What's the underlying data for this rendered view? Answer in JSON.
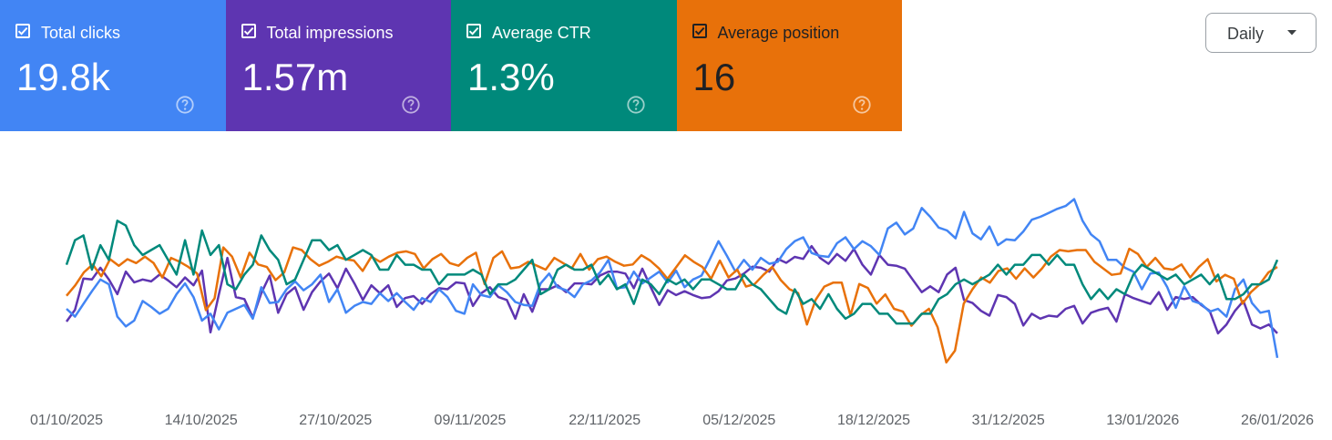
{
  "metrics": [
    {
      "label": "Total clicks",
      "value": "19.8k",
      "color": "#4285f4",
      "checked": true
    },
    {
      "label": "Total impressions",
      "value": "1.57m",
      "color": "#5e35b1",
      "checked": true
    },
    {
      "label": "Average CTR",
      "value": "1.3%",
      "color": "#00897b",
      "checked": true
    },
    {
      "label": "Average position",
      "value": "16",
      "color": "#e8710a",
      "checked": true
    }
  ],
  "range_select": {
    "value": "Daily",
    "icon": "caret-down-icon"
  },
  "help_icon": "help-circle-icon",
  "chart_data": {
    "type": "line",
    "x_start": "01/10/2025",
    "x_end": "26/01/2026",
    "x_ticks": [
      "01/10/2025",
      "14/10/2025",
      "27/10/2025",
      "09/11/2025",
      "22/11/2025",
      "05/12/2025",
      "18/12/2025",
      "31/12/2025",
      "13/01/2026",
      "26/01/2026"
    ],
    "y_axis_visible": false,
    "grid": false,
    "series": [
      {
        "name": "Total impressions",
        "color": "#5e35b1",
        "values": [
          267,
          279,
          311,
          310,
          322,
          310,
          295,
          318,
          307,
          310,
          308,
          315,
          309,
          302,
          312,
          304,
          319,
          256,
          295,
          332,
          292,
          290,
          271,
          296,
          314,
          276,
          295,
          302,
          279,
          297,
          308,
          316,
          301,
          321,
          306,
          289,
          304,
          296,
          304,
          282,
          291,
          293,
          285,
          295,
          301,
          300,
          307,
          306,
          283,
          296,
          302,
          292,
          289,
          270,
          295,
          277,
          300,
          300,
          304,
          297,
          306,
          306,
          305,
          314,
          318,
          318,
          316,
          301,
          321,
          302,
          284,
          299,
          294,
          298,
          294,
          291,
          292,
          298,
          309,
          311,
          316,
          323,
          322,
          318,
          331,
          327,
          333,
          331,
          344,
          332,
          326,
          336,
          329,
          341,
          325,
          315,
          335,
          325,
          324,
          321,
          309,
          297,
          303,
          297,
          315,
          322,
          289,
          286,
          278,
          273,
          294,
          292,
          285,
          263,
          275,
          270,
          273,
          272,
          280,
          283,
          265,
          276,
          279,
          281,
          267,
          295,
          291,
          288,
          285,
          297,
          279,
          292,
          290,
          292,
          284,
          278,
          255,
          264,
          278,
          288,
          264,
          260,
          264,
          255
        ]
      },
      {
        "name": "Total clicks",
        "color": "#4285f4",
        "values": [
          280,
          272,
          285,
          298,
          310,
          305,
          272,
          262,
          268,
          288,
          282,
          275,
          280,
          295,
          306,
          292,
          268,
          275,
          259,
          276,
          280,
          284,
          270,
          302,
          286,
          287,
          300,
          308,
          299,
          305,
          315,
          287,
          300,
          276,
          283,
          287,
          285,
          296,
          288,
          296,
          287,
          279,
          291,
          287,
          300,
          292,
          278,
          275,
          305,
          294,
          292,
          304,
          297,
          287,
          284,
          283,
          306,
          316,
          302,
          299,
          292,
          305,
          309,
          317,
          330,
          301,
          302,
          318,
          306,
          312,
          318,
          307,
          319,
          302,
          310,
          314,
          331,
          349,
          334,
          318,
          330,
          320,
          332,
          326,
          328,
          341,
          349,
          353,
          337,
          334,
          333,
          347,
          353,
          341,
          349,
          344,
          335,
          362,
          368,
          356,
          362,
          383,
          374,
          363,
          360,
          352,
          379,
          357,
          351,
          364,
          345,
          351,
          350,
          359,
          371,
          374,
          378,
          382,
          385,
          392,
          370,
          356,
          349,
          330,
          330,
          322,
          318,
          300,
          316,
          317,
          302,
          281,
          303,
          288,
          285,
          277,
          280,
          272,
          300,
          310,
          286,
          276,
          278,
          230
        ]
      },
      {
        "name": "Average position",
        "color": "#e8710a",
        "values": [
          19.0,
          18.2,
          17.2,
          16.6,
          17.5,
          16.2,
          16.7,
          16.2,
          16.5,
          16.0,
          16.5,
          17.6,
          16.1,
          16.4,
          16.8,
          17.3,
          20.1,
          19.2,
          15.3,
          16.0,
          17.6,
          15.7,
          16.6,
          16.8,
          17.8,
          17.2,
          15.3,
          15.5,
          16.2,
          16.7,
          16.4,
          16.0,
          16.2,
          16.3,
          17.1,
          16.0,
          16.4,
          16.0,
          15.7,
          15.6,
          15.8,
          16.9,
          16.2,
          15.8,
          16.5,
          16.7,
          16.1,
          15.7,
          18.1,
          16.1,
          15.6,
          16.9,
          16.8,
          16.4,
          16.7,
          17.0,
          16.1,
          16.5,
          16.9,
          15.8,
          17.0,
          16.2,
          16.0,
          16.4,
          16.7,
          16.6,
          15.9,
          16.3,
          16.9,
          17.7,
          16.8,
          15.9,
          16.4,
          16.8,
          17.7,
          16.3,
          17.6,
          17.0,
          18.3,
          18.1,
          17.4,
          16.8,
          17.8,
          18.5,
          18.8,
          21.2,
          19.3,
          18.3,
          18.0,
          18.0,
          20.5,
          18.1,
          18.4,
          19.6,
          18.9,
          20.0,
          20.2,
          21.3,
          20.5,
          20.0,
          21.4,
          24.1,
          23.2,
          19.6,
          18.5,
          17.6,
          18.0,
          17.1,
          16.9,
          17.7,
          16.9,
          17.6,
          16.9,
          16.0,
          15.5,
          15.6,
          15.5,
          15.5,
          16.4,
          16.9,
          17.4,
          17.3,
          15.4,
          15.8,
          16.8,
          16.1,
          16.9,
          17.0,
          16.6,
          17.6,
          16.8,
          16.2,
          17.9,
          17.4,
          17.7,
          19.6,
          18.7,
          18.1,
          17.2,
          16.8
        ]
      },
      {
        "name": "Average CTR",
        "color": "#00897b",
        "values": [
          1.3,
          1.35,
          1.36,
          1.29,
          1.34,
          1.31,
          1.39,
          1.38,
          1.34,
          1.32,
          1.33,
          1.34,
          1.31,
          1.28,
          1.35,
          1.28,
          1.37,
          1.32,
          1.34,
          1.26,
          1.25,
          1.28,
          1.3,
          1.36,
          1.33,
          1.31,
          1.26,
          1.27,
          1.31,
          1.35,
          1.35,
          1.33,
          1.34,
          1.31,
          1.32,
          1.33,
          1.32,
          1.29,
          1.29,
          1.32,
          1.3,
          1.3,
          1.29,
          1.29,
          1.26,
          1.28,
          1.28,
          1.28,
          1.29,
          1.28,
          1.24,
          1.26,
          1.26,
          1.27,
          1.29,
          1.31,
          1.24,
          1.25,
          1.29,
          1.3,
          1.29,
          1.29,
          1.3,
          1.26,
          1.28,
          1.25,
          1.26,
          1.22,
          1.27,
          1.26,
          1.24,
          1.27,
          1.26,
          1.27,
          1.25,
          1.27,
          1.27,
          1.26,
          1.25,
          1.25,
          1.28,
          1.26,
          1.25,
          1.23,
          1.21,
          1.2,
          1.25,
          1.22,
          1.23,
          1.21,
          1.24,
          1.21,
          1.19,
          1.2,
          1.22,
          1.22,
          1.2,
          1.2,
          1.18,
          1.18,
          1.18,
          1.2,
          1.2,
          1.23,
          1.24,
          1.26,
          1.27,
          1.26,
          1.27,
          1.28,
          1.3,
          1.28,
          1.3,
          1.3,
          1.32,
          1.32,
          1.3,
          1.32,
          1.3,
          1.3,
          1.26,
          1.23,
          1.25,
          1.23,
          1.25,
          1.24,
          1.28,
          1.3,
          1.29,
          1.28,
          1.27,
          1.28,
          1.26,
          1.27,
          1.28,
          1.26,
          1.28,
          1.23,
          1.23,
          1.24,
          1.26,
          1.26,
          1.27,
          1.31
        ]
      }
    ]
  }
}
